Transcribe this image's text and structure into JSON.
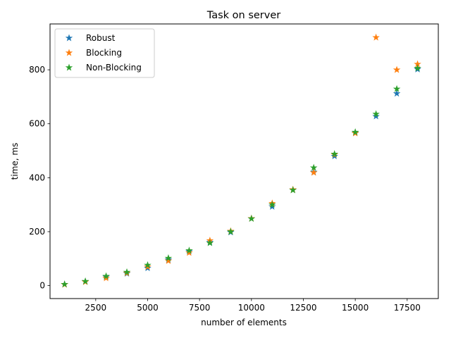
{
  "chart_data": {
    "type": "scatter",
    "title": "Task on server",
    "xlabel": "number of elements",
    "ylabel": "time, ms",
    "xlim": [
      300,
      19000
    ],
    "ylim": [
      -48,
      970
    ],
    "xticks": [
      2500,
      5000,
      7500,
      10000,
      12500,
      15000,
      17500
    ],
    "yticks": [
      0,
      200,
      400,
      600,
      800
    ],
    "grid": false,
    "legend_position": "top-left",
    "marker": "star",
    "series": [
      {
        "name": "Robust",
        "color": "#1f77b4",
        "x": [
          1000,
          2000,
          3000,
          4000,
          5000,
          6000,
          7000,
          8000,
          9000,
          10000,
          11000,
          12000,
          13000,
          14000,
          15000,
          16000,
          17000,
          18000
        ],
        "y": [
          5,
          15,
          33,
          45,
          65,
          96,
          127,
          161,
          198,
          249,
          293,
          355,
          421,
          480,
          566,
          628,
          712,
          802
        ]
      },
      {
        "name": "Blocking",
        "color": "#ff7f0e",
        "x": [
          1000,
          2000,
          3000,
          4000,
          5000,
          6000,
          7000,
          8000,
          9000,
          10000,
          11000,
          12000,
          13000,
          14000,
          15000,
          16000,
          17000,
          18000
        ],
        "y": [
          4,
          14,
          28,
          47,
          70,
          92,
          122,
          167,
          202,
          249,
          305,
          356,
          419,
          486,
          565,
          920,
          800,
          821
        ]
      },
      {
        "name": "Non-Blocking",
        "color": "#2ca02c",
        "x": [
          1000,
          2000,
          3000,
          4000,
          5000,
          6000,
          7000,
          8000,
          9000,
          10000,
          11000,
          12000,
          13000,
          14000,
          15000,
          16000,
          17000,
          18000
        ],
        "y": [
          5,
          16,
          35,
          50,
          76,
          102,
          130,
          158,
          200,
          248,
          300,
          354,
          437,
          488,
          569,
          636,
          729,
          806
        ]
      }
    ]
  }
}
